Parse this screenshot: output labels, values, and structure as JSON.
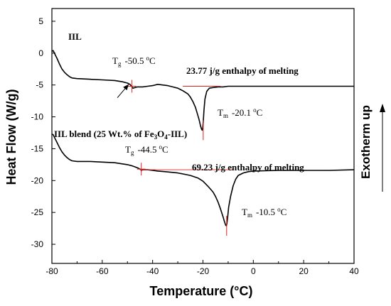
{
  "chart_data": {
    "type": "line",
    "title": "",
    "xlabel": "Temperature (°C)",
    "ylabel": "Heat Flow (W/g)",
    "side_label": "Exotherm up",
    "xlim": [
      -80,
      40
    ],
    "ylim": [
      -33,
      7
    ],
    "xticks": [
      -80,
      -60,
      -40,
      -20,
      0,
      20,
      40
    ],
    "yticks": [
      5,
      0,
      -5,
      -10,
      -15,
      -20,
      -25,
      -30
    ],
    "grid": false,
    "series": [
      {
        "label": "IIL",
        "color": "#000000",
        "x": [
          -80,
          -79.5,
          -79,
          -78,
          -77,
          -76,
          -75,
          -74,
          -73,
          -72,
          -70,
          -65,
          -60,
          -55,
          -52,
          -50,
          -49,
          -48.2,
          -47.8,
          -47,
          -46,
          -44,
          -42,
          -40,
          -38,
          -36,
          -34,
          -32,
          -30,
          -28,
          -26,
          -25,
          -24,
          -23,
          -22,
          -21.5,
          -21,
          -20.6,
          -20.3,
          -20.1,
          -19.9,
          -19.6,
          -19.2,
          -18.5,
          -17.5,
          -16,
          -14,
          -12,
          -10,
          -5,
          0,
          10,
          20,
          30,
          40
        ],
        "y": [
          0.3,
          0.4,
          0,
          -0.8,
          -1.7,
          -2.5,
          -3.0,
          -3.4,
          -3.7,
          -3.9,
          -4.0,
          -4.1,
          -4.2,
          -4.3,
          -4.5,
          -4.7,
          -4.9,
          -5.3,
          -5.5,
          -5.4,
          -5.3,
          -5.3,
          -5.2,
          -5.1,
          -4.9,
          -5.0,
          -5.1,
          -5.3,
          -5.5,
          -5.9,
          -6.4,
          -6.9,
          -7.6,
          -8.5,
          -9.8,
          -10.5,
          -11.4,
          -11.9,
          -12.1,
          -11.8,
          -10.8,
          -9.0,
          -7.2,
          -6.0,
          -5.5,
          -5.4,
          -5.3,
          -5.3,
          -5.2,
          -5.2,
          -5.2,
          -5.2,
          -5.2,
          -5.2,
          -5.2
        ]
      },
      {
        "label": "IIL blend (25 Wt.% of Fe3O4-IIL)",
        "color": "#000000",
        "x": [
          -80,
          -79.5,
          -79,
          -78,
          -77,
          -76,
          -75,
          -74,
          -73,
          -72,
          -70,
          -65,
          -60,
          -55,
          -50,
          -48,
          -46,
          -45,
          -44.5,
          -44,
          -43,
          -42,
          -40,
          -38,
          -35,
          -30,
          -25,
          -22,
          -20,
          -18,
          -16,
          -15,
          -14,
          -13,
          -12,
          -11.5,
          -11,
          -10.7,
          -10.5,
          -10.2,
          -9.8,
          -9,
          -8,
          -7,
          -6,
          -4,
          -2,
          0,
          10,
          20,
          30,
          40
        ],
        "y": [
          -12.7,
          -12.8,
          -13.2,
          -14.0,
          -14.8,
          -15.5,
          -16.0,
          -16.4,
          -16.7,
          -16.9,
          -17.0,
          -17.0,
          -17.1,
          -17.2,
          -17.5,
          -17.7,
          -18.0,
          -18.2,
          -18.4,
          -18.3,
          -18.3,
          -18.3,
          -18.4,
          -18.5,
          -18.6,
          -18.8,
          -19.2,
          -19.6,
          -20.1,
          -20.9,
          -21.8,
          -22.5,
          -23.4,
          -24.5,
          -25.7,
          -26.4,
          -27.0,
          -27.1,
          -26.8,
          -25.8,
          -24.2,
          -22.4,
          -20.8,
          -19.8,
          -19.2,
          -18.8,
          -18.6,
          -18.5,
          -18.4,
          -18.4,
          -18.4,
          -18.3
        ]
      }
    ],
    "annotations": {
      "series1_label": "IIL",
      "tg1_prefix": "T",
      "tg1_sub": "g",
      "tg1_value": "-50.5",
      "tg1_unit_sup": "o",
      "tg1_unit": "C",
      "enthalpy1": "23.77 j/g enthalpy of melting",
      "tm1_prefix": "T",
      "tm1_sub": "m",
      "tm1_value": "-20.1",
      "tm1_unit_sup": "o",
      "tm1_unit": "C",
      "series2_label_part1": "IIL blend (25 Wt.% of Fe",
      "series2_sub1": "3",
      "series2_label_part2": "O",
      "series2_sub2": "4",
      "series2_label_part3": "-IIL)",
      "tg2_prefix": "T",
      "tg2_sub": "g",
      "tg2_value": "-44.5",
      "tg2_unit_sup": "o",
      "tg2_unit": "C",
      "enthalpy2": "69.23 j/g enthalpy of melting",
      "tm2_prefix": "T",
      "tm2_sub": "m",
      "tm2_value": "-10.5",
      "tm2_unit_sup": "o",
      "tm2_unit": "C"
    },
    "baselines": [
      {
        "x": [
          -28,
          -13
        ],
        "y": [
          -5.2,
          -5.2
        ]
      },
      {
        "x": [
          -45,
          -8
        ],
        "y": [
          -18.3,
          -18.3
        ]
      }
    ],
    "markers": [
      {
        "x": -48.2,
        "y": -5.2,
        "type": "tick"
      },
      {
        "x": -19.9,
        "y": -12.1,
        "type": "vline"
      },
      {
        "x": -44.5,
        "y": -18.2,
        "type": "tick"
      },
      {
        "x": -10.6,
        "y": -27.1,
        "type": "vline"
      }
    ],
    "arrow": {
      "from": [
        -54,
        -7.0
      ],
      "to": [
        -49.5,
        -4.9
      ]
    },
    "marker_color": "#e02020"
  }
}
